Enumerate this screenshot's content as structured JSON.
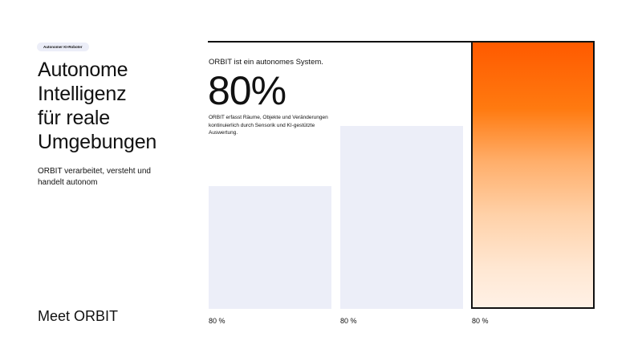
{
  "badge": "Autonomer KI-Roboter",
  "title": [
    "Autonome",
    "Intelligenz",
    "für reale",
    "Umgebungen"
  ],
  "subtitle": "ORBIT verarbeitet, versteht und handelt autonom",
  "cta": "Meet ORBIT",
  "stat": {
    "kicker": "ORBIT ist ein autonomes System.",
    "value": "80%",
    "description": "ORBIT erfasst Räume, Objekte und Veränderungen kontinuierlich durch Sensorik und KI-gestützte Auswertung."
  },
  "bars": [
    {
      "label": "80 %"
    },
    {
      "label": "80 %"
    },
    {
      "label": "80 %"
    }
  ],
  "colors": {
    "accent": "#ff5a00",
    "bar": "#eceef8"
  }
}
